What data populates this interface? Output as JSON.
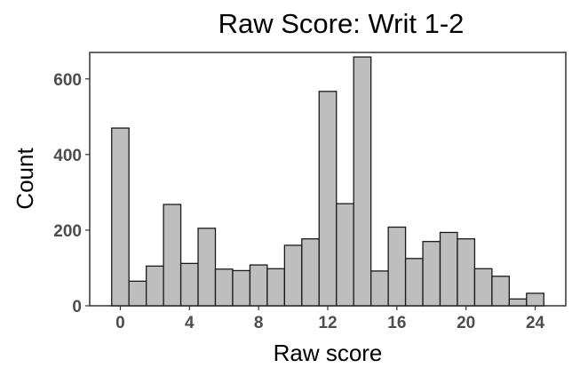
{
  "chart_data": {
    "type": "bar",
    "title": "Raw Score: Writ 1-2",
    "xlabel": "Raw score",
    "ylabel": "Count",
    "x": [
      0,
      1,
      2,
      3,
      4,
      5,
      6,
      7,
      8,
      9,
      10,
      11,
      12,
      13,
      14,
      15,
      16,
      17,
      18,
      19,
      20,
      21,
      22,
      23,
      24
    ],
    "values": [
      470,
      65,
      105,
      268,
      112,
      205,
      97,
      93,
      108,
      98,
      160,
      177,
      567,
      270,
      658,
      92,
      208,
      125,
      170,
      194,
      177,
      98,
      78,
      18,
      33
    ],
    "xlim": [
      -1,
      25
    ],
    "ylim": [
      0,
      670
    ],
    "x_ticks": [
      0,
      4,
      8,
      12,
      16,
      20,
      24
    ],
    "y_ticks": [
      0,
      200,
      400,
      600
    ],
    "x_tick_labels": [
      "0",
      "4",
      "8",
      "12",
      "16",
      "20",
      "24"
    ],
    "y_tick_labels": [
      "0",
      "200",
      "400",
      "600"
    ],
    "grid": false,
    "legend": "none",
    "colors": {
      "bar_fill": "#bebebe",
      "bar_stroke": "#1a1a1a",
      "axis_text": "#4d4d4d"
    }
  }
}
